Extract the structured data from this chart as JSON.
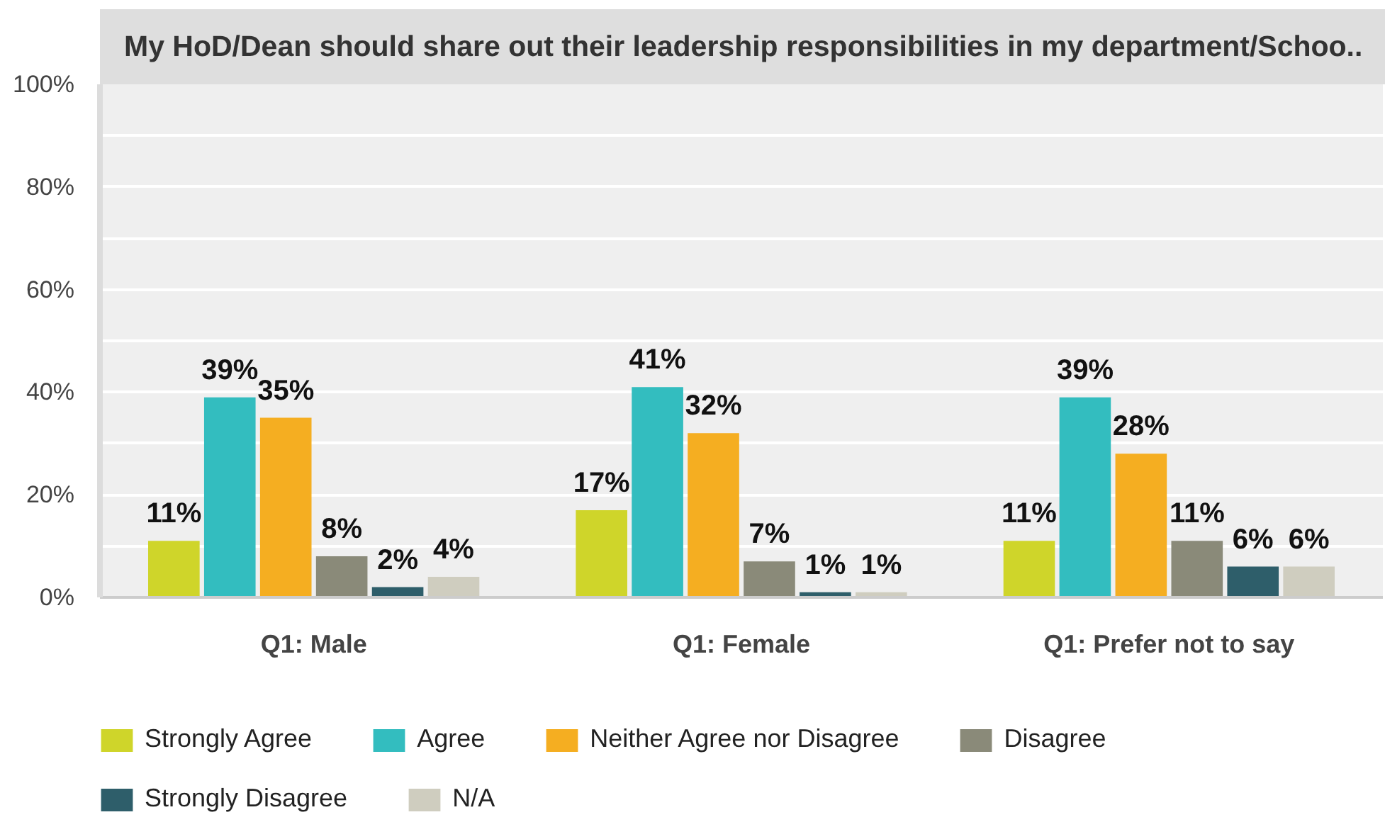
{
  "chart_data": {
    "type": "bar",
    "title": "My HoD/Dean should share out their leadership responsibilities in my department/Schoo..",
    "categories": [
      "Q1: Male",
      "Q1: Female",
      "Q1: Prefer not to say"
    ],
    "series": [
      {
        "name": "Strongly Agree",
        "color": "#cfd52a",
        "values": [
          11,
          17,
          11
        ],
        "value_labels": [
          "11%",
          "17%",
          "11%"
        ]
      },
      {
        "name": "Agree",
        "color": "#33bdbf",
        "values": [
          39,
          41,
          39
        ],
        "value_labels": [
          "39%",
          "41%",
          "39%"
        ]
      },
      {
        "name": "Neither Agree nor Disagree",
        "color": "#f5ae21",
        "values": [
          35,
          32,
          28
        ],
        "value_labels": [
          "35%",
          "32%",
          "28%"
        ]
      },
      {
        "name": "Disagree",
        "color": "#8a8a79",
        "values": [
          8,
          7,
          11
        ],
        "value_labels": [
          "8%",
          "7%",
          "11%"
        ]
      },
      {
        "name": "Strongly Disagree",
        "color": "#2e5e6a",
        "values": [
          2,
          1,
          6
        ],
        "value_labels": [
          "2%",
          "1%",
          "6%"
        ]
      },
      {
        "name": "N/A",
        "color": "#cfcdbf",
        "values": [
          4,
          1,
          6
        ],
        "value_labels": [
          "4%",
          "1%",
          "6%"
        ]
      }
    ],
    "ylim": [
      0,
      100
    ],
    "yticks": [
      {
        "value": 0,
        "label": "0%"
      },
      {
        "value": 10,
        "label": null
      },
      {
        "value": 20,
        "label": "20%"
      },
      {
        "value": 30,
        "label": null
      },
      {
        "value": 40,
        "label": "40%"
      },
      {
        "value": 50,
        "label": null
      },
      {
        "value": 60,
        "label": "60%"
      },
      {
        "value": 70,
        "label": null
      },
      {
        "value": 80,
        "label": "80%"
      },
      {
        "value": 90,
        "label": null
      },
      {
        "value": 100,
        "label": "100%"
      }
    ],
    "grid": "y",
    "legend": "bottom"
  }
}
